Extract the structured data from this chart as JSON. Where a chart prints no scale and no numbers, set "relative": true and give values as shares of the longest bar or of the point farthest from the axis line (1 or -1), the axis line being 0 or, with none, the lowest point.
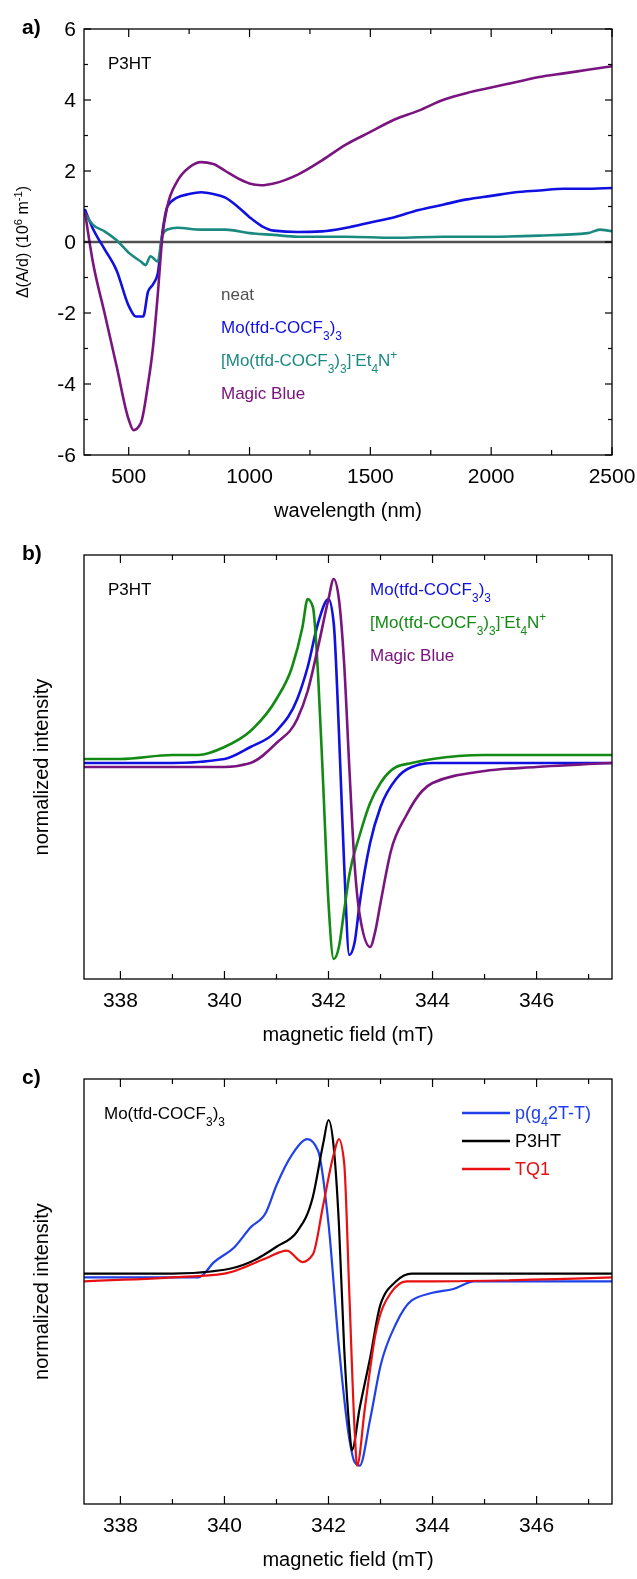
{
  "chart_data": [
    {
      "type": "line",
      "title": "a)",
      "xlabel": "wavelength (nm)",
      "ylabel": "Δ(A/d) (10$^{6}$ m$^{-1}$)",
      "xlim": [
        315,
        2500
      ],
      "ylim": [
        -6,
        6
      ],
      "xticks": [
        500,
        {
          "value": 750,
          "label": null
        },
        1000,
        {
          "value": 1250,
          "label": null
        },
        1500,
        {
          "value": 1750,
          "label": null
        },
        2000,
        {
          "value": 2250,
          "label": null
        },
        2500
      ],
      "yticks": [
        -6,
        {
          "value": -5,
          "label": null
        },
        -4,
        {
          "value": -3,
          "label": null
        },
        -2,
        {
          "value": -1,
          "label": null
        },
        0,
        {
          "value": 1,
          "label": null
        },
        2,
        {
          "value": 3,
          "label": null
        },
        4,
        {
          "value": 5,
          "label": null
        },
        6
      ],
      "legend": "bottom",
      "annotations": [
        "P3HT"
      ],
      "series": [
        {
          "name": "neat",
          "color": "#505050",
          "x": [
            315,
            2500
          ],
          "values": [
            0,
            0
          ]
        },
        {
          "name": "Mo(tfd-COCF$_{3}$)$_{3}$",
          "color": "#1010e0",
          "x": [
            320,
            350,
            400,
            450,
            500,
            530,
            560,
            580,
            600,
            620,
            640,
            660,
            700,
            750,
            800,
            850,
            900,
            950,
            1000,
            1050,
            1100,
            1200,
            1300,
            1400,
            1500,
            1600,
            1700,
            1800,
            1900,
            2000,
            2100,
            2200,
            2300,
            2400,
            2500
          ],
          "values": [
            0.9,
            0.4,
            -0.2,
            -0.8,
            -1.8,
            -2.1,
            -2.1,
            -1.4,
            -1.2,
            -0.9,
            0.3,
            1.0,
            1.25,
            1.35,
            1.4,
            1.35,
            1.25,
            1.0,
            0.7,
            0.45,
            0.32,
            0.28,
            0.3,
            0.4,
            0.55,
            0.7,
            0.9,
            1.05,
            1.2,
            1.3,
            1.4,
            1.45,
            1.5,
            1.5,
            1.52
          ]
        },
        {
          "name": "[Mo(tfd-COCF$_{3}$)$_{3}$]$^{-}$Et$_{4}$N$^{+}$",
          "color": "#1a8a80",
          "x": [
            320,
            350,
            400,
            450,
            500,
            550,
            570,
            590,
            620,
            640,
            660,
            700,
            800,
            900,
            1000,
            1100,
            1200,
            1400,
            1600,
            1800,
            2000,
            2200,
            2400,
            2450,
            2500
          ],
          "values": [
            0.8,
            0.5,
            0.3,
            0.05,
            -0.3,
            -0.55,
            -0.65,
            -0.4,
            -0.55,
            0.2,
            0.35,
            0.4,
            0.35,
            0.35,
            0.25,
            0.2,
            0.15,
            0.15,
            0.12,
            0.15,
            0.15,
            0.18,
            0.25,
            0.35,
            0.3
          ]
        },
        {
          "name": "Magic Blue",
          "color": "#7a1580",
          "x": [
            320,
            350,
            400,
            450,
            500,
            520,
            550,
            580,
            600,
            620,
            640,
            660,
            700,
            750,
            800,
            850,
            900,
            950,
            1000,
            1050,
            1100,
            1200,
            1300,
            1400,
            1500,
            1600,
            1700,
            1800,
            1900,
            2000,
            2100,
            2200,
            2300,
            2400,
            2500
          ],
          "values": [
            0.8,
            -0.5,
            -2.0,
            -3.5,
            -5.0,
            -5.3,
            -5.1,
            -4.0,
            -3.0,
            -1.5,
            0.2,
            1.0,
            1.7,
            2.1,
            2.25,
            2.2,
            2.0,
            1.8,
            1.65,
            1.6,
            1.65,
            1.9,
            2.3,
            2.75,
            3.1,
            3.45,
            3.7,
            4.0,
            4.2,
            4.35,
            4.5,
            4.65,
            4.75,
            4.85,
            4.95
          ]
        }
      ]
    },
    {
      "type": "line",
      "title": "b)",
      "xlabel": "magnetic field (mT)",
      "ylabel": "normalized intensity",
      "relative": true,
      "xlim": [
        337.3,
        347.45
      ],
      "xticks": [
        338,
        {
          "value": 339,
          "label": null
        },
        340,
        {
          "value": 341,
          "label": null
        },
        342,
        {
          "value": 343,
          "label": null
        },
        344,
        {
          "value": 345,
          "label": null
        },
        346,
        {
          "value": 347,
          "label": null
        }
      ],
      "tick_labels": "x",
      "legend": "top right",
      "annotations": [
        "P3HT"
      ],
      "series": [
        {
          "name": "Mo(tfd-COCF$_{3}$)$_{3}$",
          "color": "#1010e0",
          "x": [
            337.3,
            339,
            340,
            340.5,
            341,
            341.4,
            341.6,
            341.8,
            342.0,
            342.1,
            342.2,
            342.3,
            342.4,
            342.5,
            342.6,
            342.8,
            343,
            343.3,
            343.6,
            344,
            345,
            346,
            347.45
          ],
          "values": [
            0.54,
            0.54,
            0.55,
            0.58,
            0.62,
            0.7,
            0.78,
            0.89,
            0.95,
            0.89,
            0.62,
            0.29,
            0.06,
            0.09,
            0.19,
            0.34,
            0.43,
            0.5,
            0.53,
            0.54,
            0.54,
            0.54,
            0.54
          ]
        },
        {
          "name": "[Mo(tfd-COCF$_{3}$)$_{3}$]$^{-}$Et$_{4}$N$^{+}$",
          "color": "#138a13",
          "x": [
            337.3,
            338,
            339,
            339.5,
            340,
            340.5,
            341,
            341.3,
            341.5,
            341.6,
            341.7,
            341.8,
            341.9,
            342.0,
            342.1,
            342.2,
            342.3,
            342.4,
            342.6,
            342.8,
            343.0,
            343.3,
            343.6,
            344,
            345,
            346,
            347.45
          ],
          "values": [
            0.55,
            0.55,
            0.56,
            0.56,
            0.58,
            0.62,
            0.7,
            0.78,
            0.88,
            0.95,
            0.93,
            0.76,
            0.48,
            0.19,
            0.05,
            0.08,
            0.17,
            0.26,
            0.36,
            0.44,
            0.49,
            0.53,
            0.54,
            0.55,
            0.56,
            0.56,
            0.56
          ]
        },
        {
          "name": "Magic Blue",
          "color": "#7a1580",
          "x": [
            337.3,
            340,
            340.5,
            341,
            341.4,
            341.6,
            341.8,
            342.0,
            342.1,
            342.2,
            342.3,
            342.4,
            342.5,
            342.6,
            342.8,
            342.9,
            343,
            343.2,
            343.5,
            343.8,
            344,
            345,
            346,
            347.45
          ],
          "values": [
            0.53,
            0.53,
            0.54,
            0.59,
            0.65,
            0.72,
            0.83,
            0.95,
            1.0,
            0.95,
            0.79,
            0.53,
            0.29,
            0.16,
            0.08,
            0.12,
            0.19,
            0.32,
            0.41,
            0.47,
            0.49,
            0.52,
            0.53,
            0.54
          ]
        }
      ]
    },
    {
      "type": "line",
      "title": "c)",
      "xlabel": "magnetic field (mT)",
      "ylabel": "normalized intensity",
      "relative": true,
      "xlim": [
        337.3,
        347.45
      ],
      "xticks": [
        338,
        {
          "value": 339,
          "label": null
        },
        340,
        {
          "value": 341,
          "label": null
        },
        342,
        {
          "value": 343,
          "label": null
        },
        344,
        {
          "value": 345,
          "label": null
        },
        346,
        {
          "value": 347,
          "label": null
        }
      ],
      "tick_labels": "x",
      "legend": "top right",
      "annotations": [
        "Mo(tfd-COCF$_{3}$)$_{3}$"
      ],
      "series": [
        {
          "name": "p(g$_{4}$2T-T)",
          "color": "#2040e8",
          "x": [
            337.3,
            339.5,
            339.8,
            340.2,
            340.5,
            340.8,
            341.0,
            341.3,
            341.6,
            341.8,
            342.0,
            342.2,
            342.4,
            342.5,
            342.6,
            342.8,
            343.0,
            343.3,
            343.6,
            344,
            344.4,
            344.8,
            345.5,
            347.45
          ],
          "values": [
            0.59,
            0.59,
            0.63,
            0.67,
            0.72,
            0.76,
            0.83,
            0.91,
            0.95,
            0.92,
            0.73,
            0.41,
            0.17,
            0.11,
            0.1,
            0.22,
            0.36,
            0.47,
            0.53,
            0.55,
            0.56,
            0.58,
            0.58,
            0.58
          ]
        },
        {
          "name": "P3HT",
          "color": "#000000",
          "x": [
            337.3,
            339,
            340,
            340.5,
            341,
            341.4,
            341.7,
            341.9,
            342.0,
            342.1,
            342.2,
            342.3,
            342.4,
            342.45,
            342.6,
            342.8,
            343,
            343.3,
            343.6,
            344,
            347.45
          ],
          "values": [
            0.6,
            0.6,
            0.61,
            0.63,
            0.67,
            0.71,
            0.8,
            0.94,
            1.0,
            0.93,
            0.73,
            0.41,
            0.2,
            0.14,
            0.25,
            0.38,
            0.52,
            0.58,
            0.6,
            0.6,
            0.6
          ]
        },
        {
          "name": "TQ1",
          "color": "#e81010",
          "x": [
            337.3,
            339,
            340,
            340.8,
            341.2,
            341.5,
            341.7,
            341.9,
            342.1,
            342.2,
            342.3,
            342.4,
            342.5,
            342.55,
            342.7,
            342.9,
            343.2,
            343.5,
            344,
            347.45
          ],
          "values": [
            0.58,
            0.59,
            0.6,
            0.64,
            0.66,
            0.63,
            0.65,
            0.78,
            0.91,
            0.95,
            0.89,
            0.55,
            0.2,
            0.1,
            0.25,
            0.44,
            0.55,
            0.58,
            0.58,
            0.59
          ]
        }
      ]
    }
  ]
}
